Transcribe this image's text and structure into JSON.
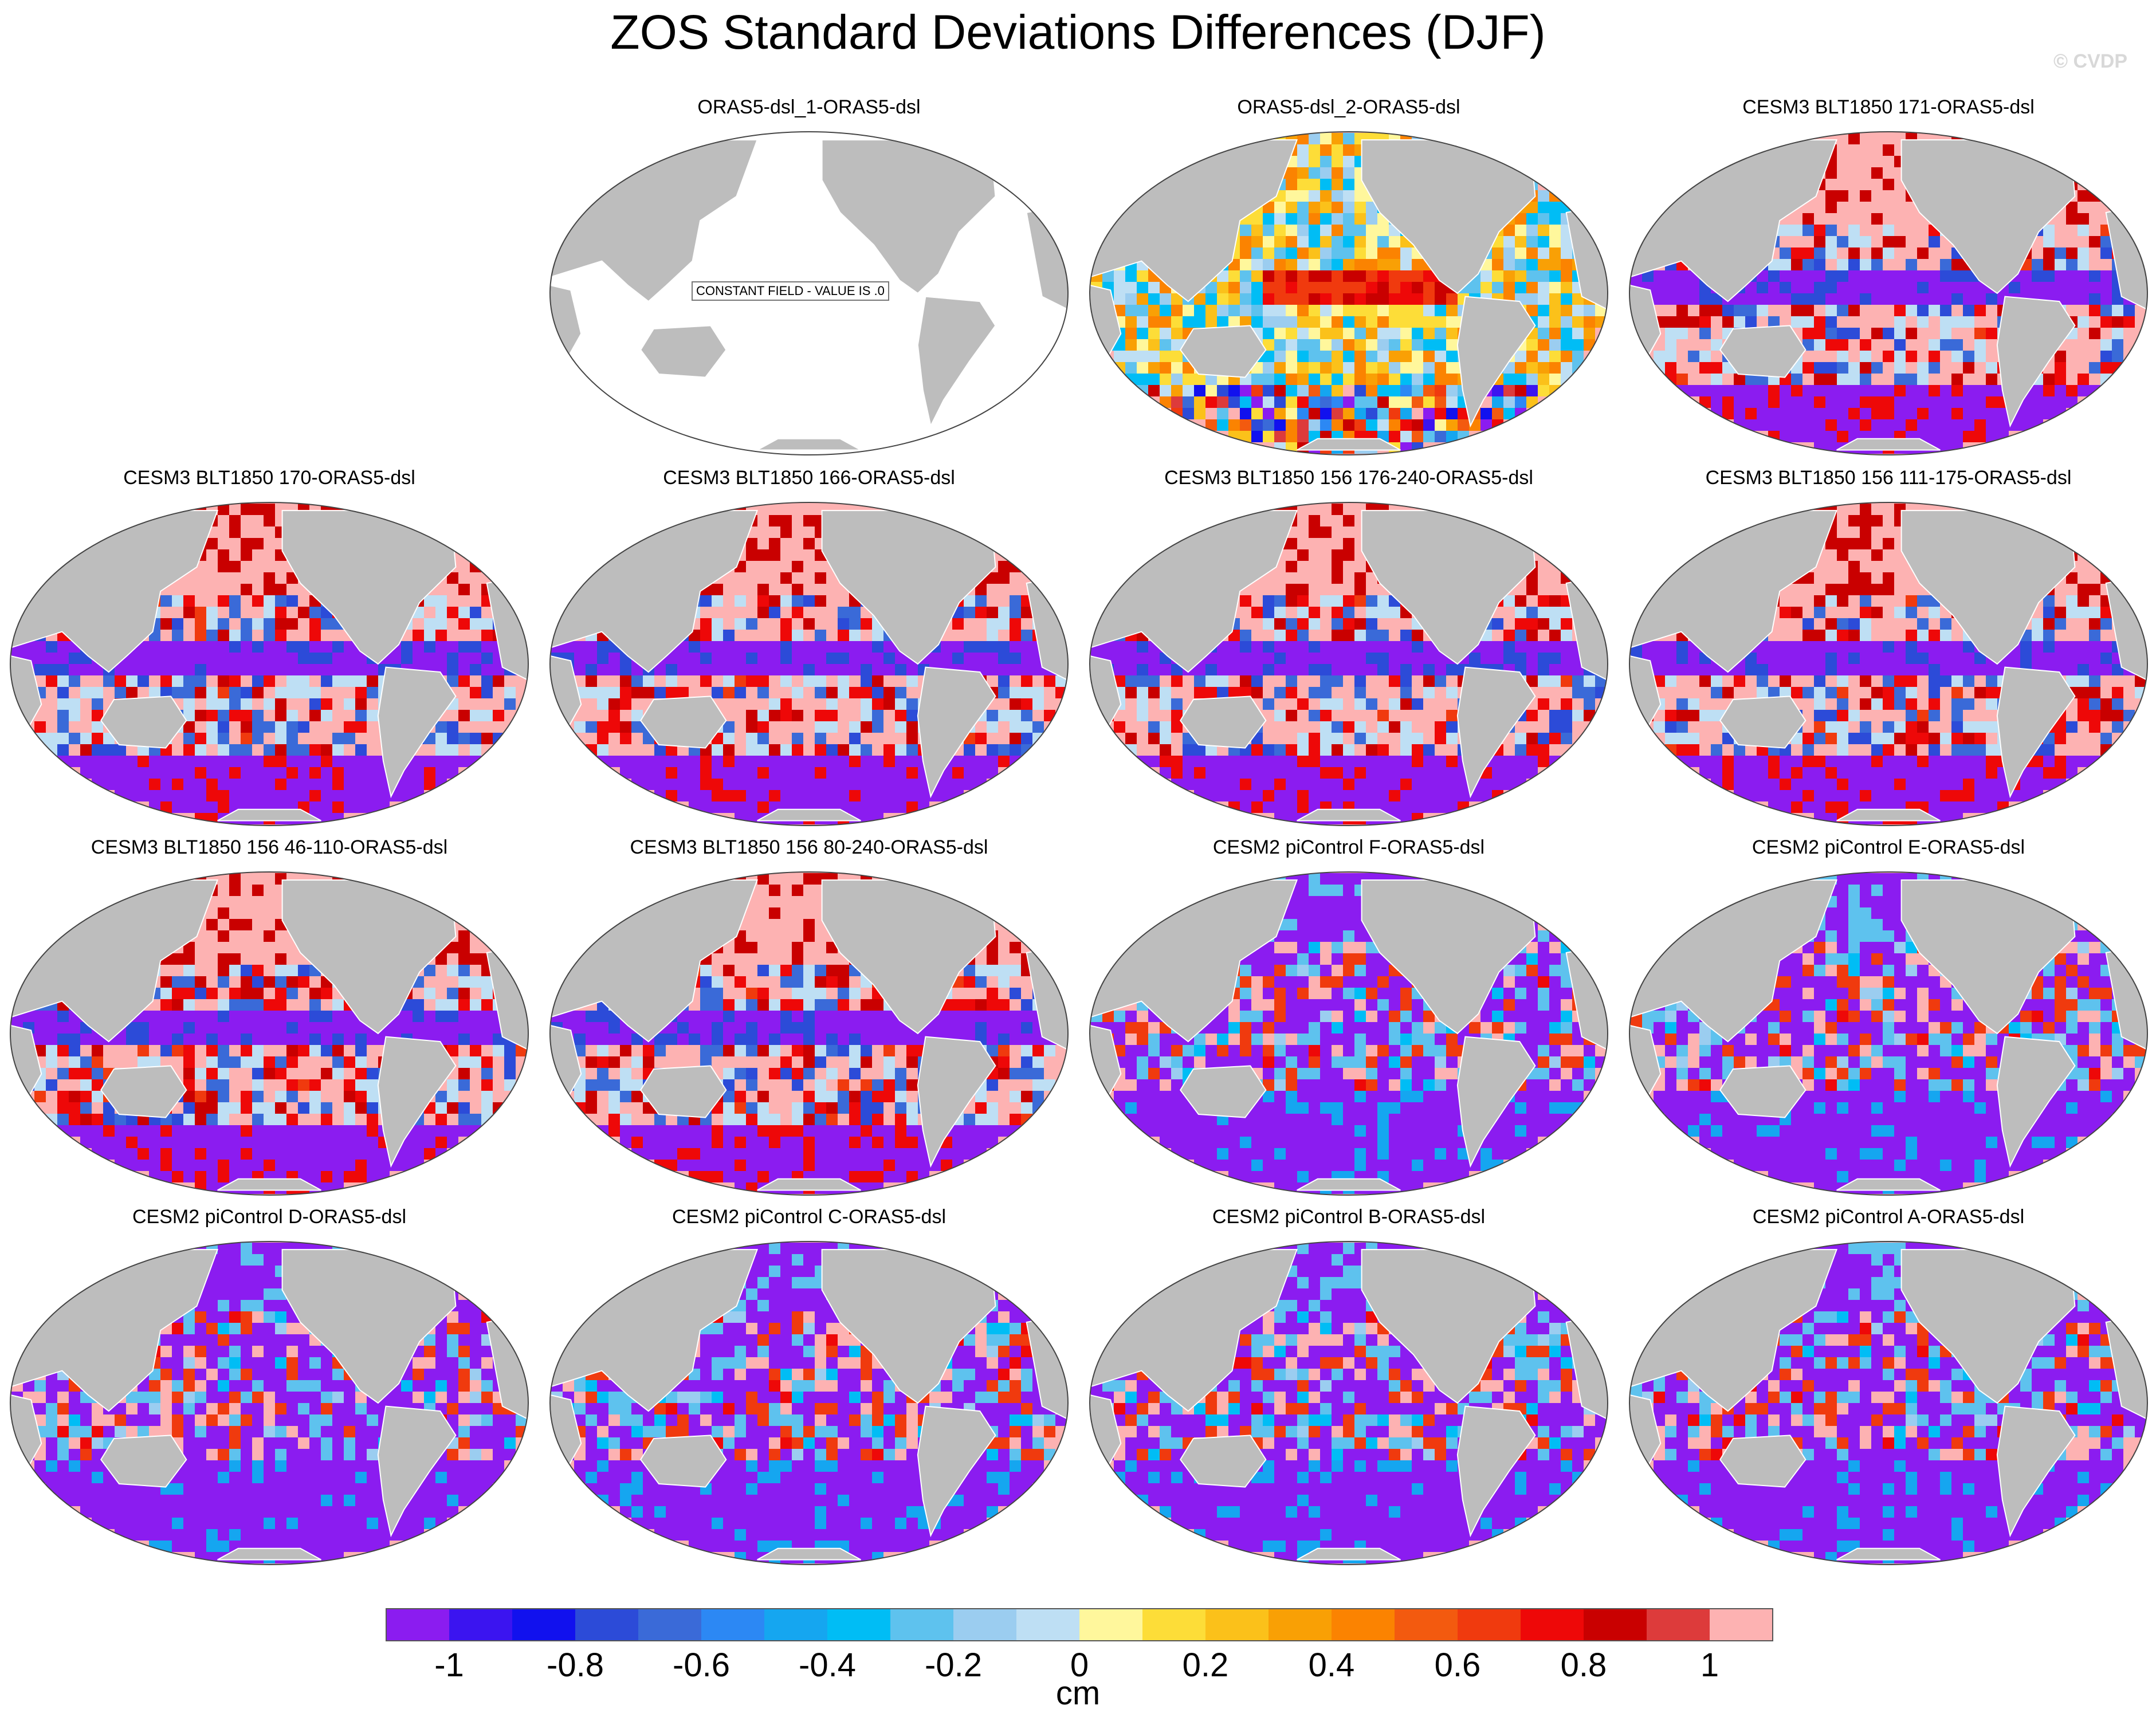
{
  "figure": {
    "title": "ZOS Standard Deviations Differences (DJF)",
    "copyright": "© CVDP",
    "units": "cm"
  },
  "colors": {
    "land": "#bdbdbd",
    "coastline": "#ffffff",
    "map_outline": "#444444",
    "ocean_constant": "#ffffff"
  },
  "chart_data": {
    "type": "heatmap",
    "variable": "ZOS standard deviation difference",
    "season": "DJF",
    "projection": "Robinson (Pacific-centered)",
    "colorbar": {
      "levels": [
        -1,
        -0.9,
        -0.8,
        -0.7,
        -0.6,
        -0.5,
        -0.4,
        -0.3,
        -0.2,
        -0.1,
        0,
        0.1,
        0.2,
        0.3,
        0.4,
        0.5,
        0.6,
        0.7,
        0.8,
        0.9,
        1
      ],
      "tick_labels": [
        "-1",
        "-0.8",
        "-0.6",
        "-0.4",
        "-0.2",
        "0",
        "0.2",
        "0.4",
        "0.6",
        "0.8",
        "1"
      ],
      "tick_values": [
        -1,
        -0.8,
        -0.6,
        -0.4,
        -0.2,
        0,
        0.2,
        0.4,
        0.6,
        0.8,
        1
      ],
      "colors": [
        "#8b1cf0",
        "#3b14f0",
        "#1111ee",
        "#2c4bd8",
        "#3a6ad8",
        "#2c88f4",
        "#15a6f0",
        "#00bdf5",
        "#5ec2ee",
        "#9bcdf0",
        "#bedff4",
        "#fff79c",
        "#fddd38",
        "#fbc11a",
        "#f9a005",
        "#fb8301",
        "#f35a0f",
        "#f03a0e",
        "#ee0808",
        "#c90000",
        "#dd3b3b",
        "#fdb2b2"
      ],
      "label": "cm"
    },
    "panels": [
      {
        "title": "ORAS5-dsl_1-ORAS5-dsl",
        "note": "CONSTANT FIELD - VALUE IS .0",
        "pattern": "constant"
      },
      {
        "title": "ORAS5-dsl_2-ORAS5-dsl",
        "pattern": "noisy"
      },
      {
        "title": "CESM3 BLT1850 171-ORAS5-dsl",
        "pattern": "cesm3"
      },
      {
        "title": "CESM3 BLT1850 170-ORAS5-dsl",
        "pattern": "cesm3"
      },
      {
        "title": "CESM3 BLT1850 166-ORAS5-dsl",
        "pattern": "cesm3"
      },
      {
        "title": "CESM3 BLT1850 156 176-240-ORAS5-dsl",
        "pattern": "cesm3"
      },
      {
        "title": "CESM3 BLT1850 156 111-175-ORAS5-dsl",
        "pattern": "cesm3"
      },
      {
        "title": "CESM3 BLT1850 156 46-110-ORAS5-dsl",
        "pattern": "cesm3"
      },
      {
        "title": "CESM3 BLT1850 156 80-240-ORAS5-dsl",
        "pattern": "cesm3"
      },
      {
        "title": "CESM2 piControl F-ORAS5-dsl",
        "pattern": "cesm2"
      },
      {
        "title": "CESM2 piControl E-ORAS5-dsl",
        "pattern": "cesm2"
      },
      {
        "title": "CESM2 piControl D-ORAS5-dsl",
        "pattern": "cesm2"
      },
      {
        "title": "CESM2 piControl C-ORAS5-dsl",
        "pattern": "cesm2"
      },
      {
        "title": "CESM2 piControl B-ORAS5-dsl",
        "pattern": "cesm2"
      },
      {
        "title": "CESM2 piControl A-ORAS5-dsl",
        "pattern": "cesm2"
      }
    ]
  }
}
